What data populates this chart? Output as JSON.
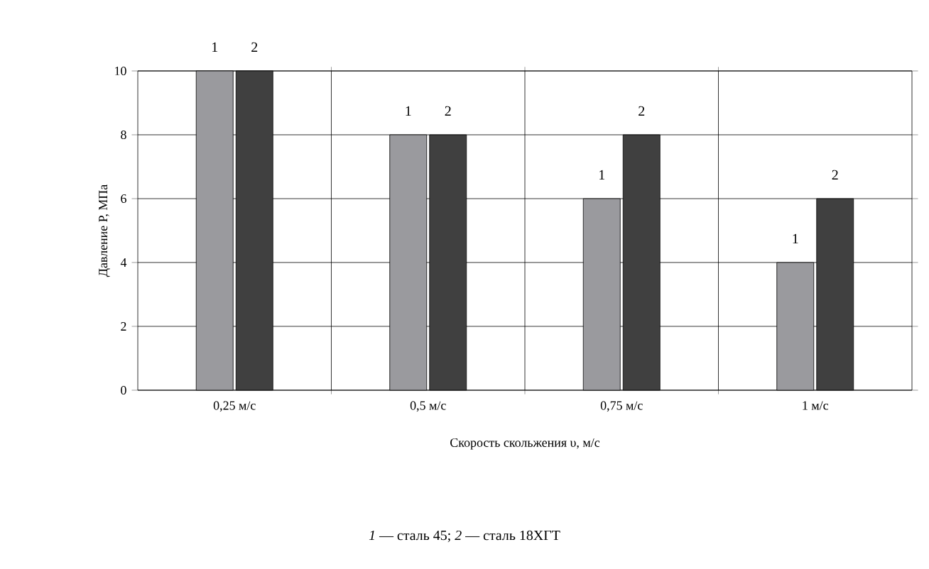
{
  "chart_data": {
    "type": "bar",
    "xlabel": "Скорость скольжения υ, м/с",
    "ylabel": "Давление Р, МПа",
    "categories": [
      "0,25 м/с",
      "0,5 м/с",
      "0,75 м/с",
      "1 м/с"
    ],
    "series": [
      {
        "name": "1",
        "color": "#9a9a9e",
        "values": [
          10,
          8,
          6,
          4
        ]
      },
      {
        "name": "2",
        "color": "#404040",
        "values": [
          10,
          8,
          8,
          6
        ]
      }
    ],
    "ylim": [
      0,
      10
    ],
    "yticks": [
      0,
      2,
      4,
      6,
      8,
      10
    ],
    "grid": true,
    "annotations": [
      "*1* — сталь 45; *2* — сталь 18ХГТ"
    ]
  }
}
